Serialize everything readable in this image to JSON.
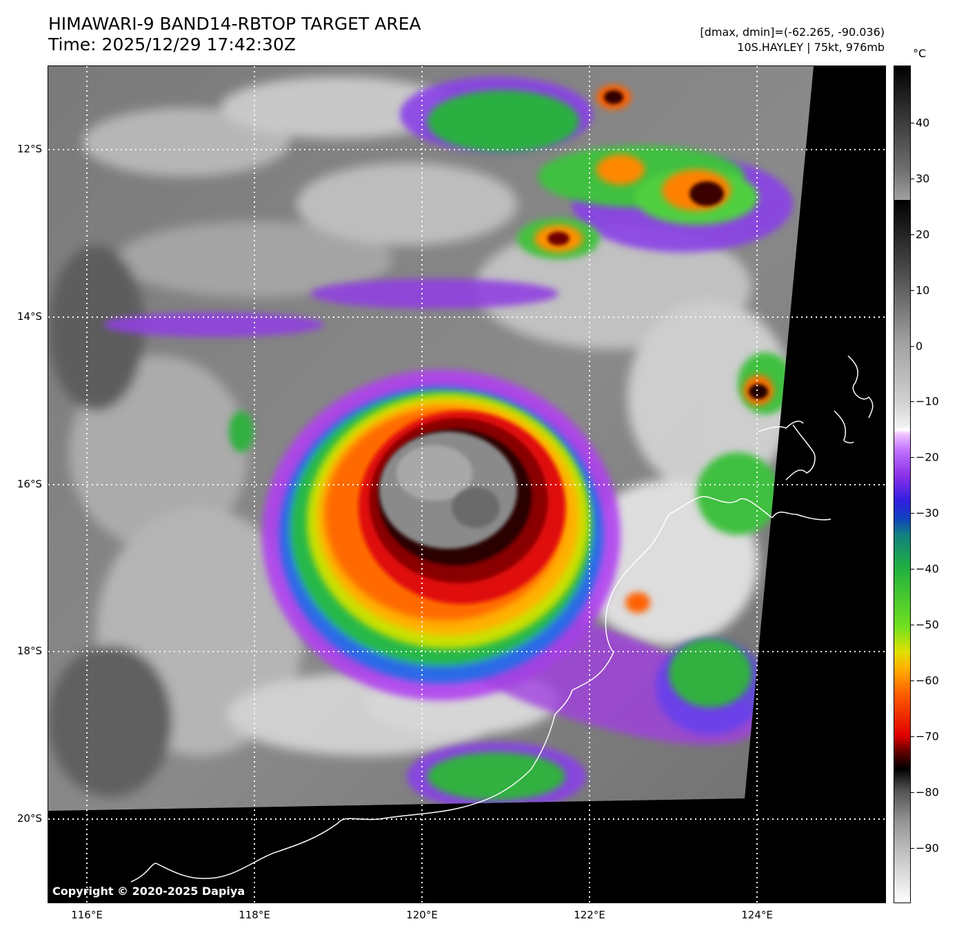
{
  "header": {
    "title": "HIMAWARI-9 BAND14-RBTOP TARGET AREA",
    "time": "Time: 2025/12/29 17:42:30Z",
    "range": "[dmax, dmin]=(-62.265, -90.036)",
    "storm": "10S.HAYLEY | 75kt, 976mb"
  },
  "axes": {
    "lat_labels": [
      "12°S",
      "14°S",
      "16°S",
      "18°S",
      "20°S"
    ],
    "lon_labels": [
      "116°E",
      "118°E",
      "120°E",
      "122°E",
      "124°E"
    ]
  },
  "colorbar": {
    "unit": "°C",
    "labels": [
      "40",
      "30",
      "20",
      "10",
      "0",
      "−10",
      "−20",
      "−30",
      "−40",
      "−50",
      "−60",
      "−70",
      "−80",
      "−90"
    ],
    "min": -100,
    "max": 50
  },
  "copyright": "Copyright © 2020-2025 Dapiya",
  "colors": {
    "background": "#ffffff",
    "grid": "#ffffff",
    "coastline": "#ffffff",
    "no_data": "#000000"
  }
}
